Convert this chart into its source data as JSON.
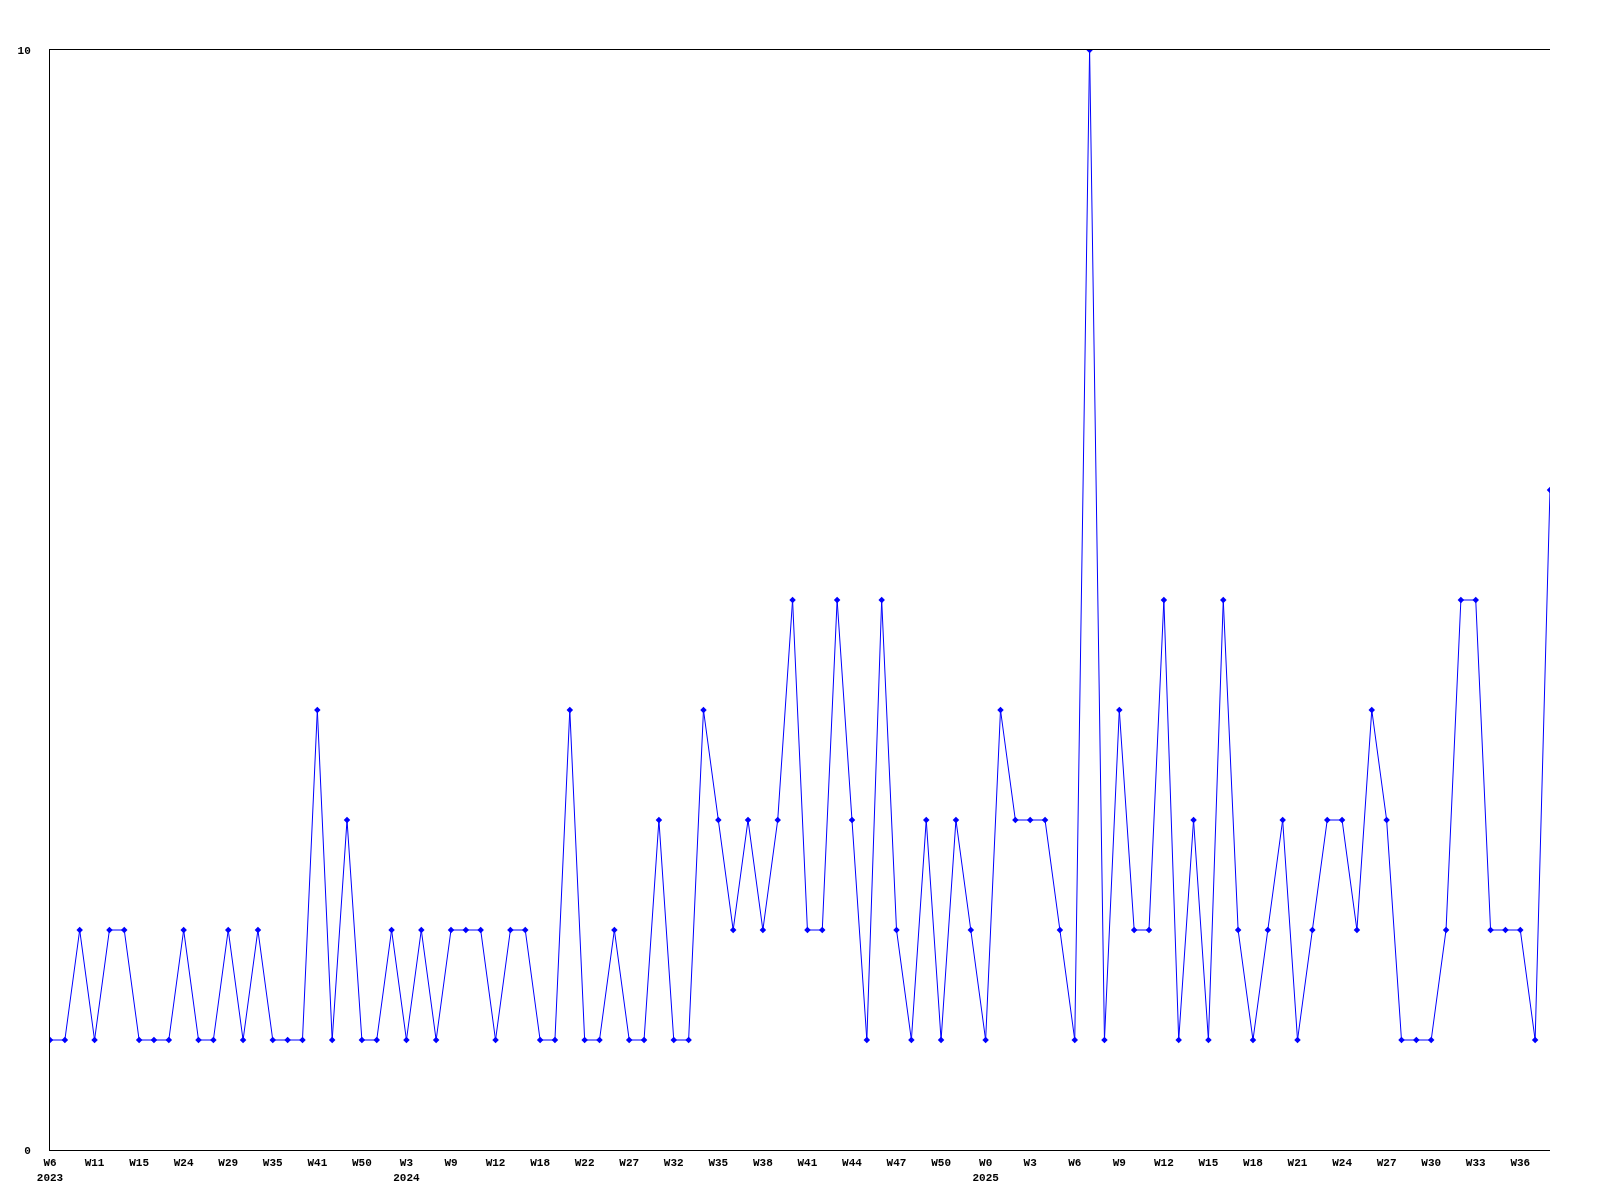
{
  "chart_data": {
    "type": "line",
    "categories": [
      "W6\n2023",
      null,
      null,
      "W11",
      null,
      null,
      "W15",
      null,
      null,
      "W24",
      null,
      null,
      "W29",
      null,
      null,
      "W35",
      null,
      null,
      "W41",
      null,
      null,
      "W50",
      null,
      null,
      "W3\n2024",
      null,
      null,
      "W9",
      null,
      null,
      "W12",
      null,
      null,
      "W18",
      null,
      null,
      "W22",
      null,
      null,
      "W27",
      null,
      null,
      "W32",
      null,
      null,
      "W35",
      null,
      null,
      "W38",
      null,
      null,
      "W41",
      null,
      null,
      "W44",
      null,
      null,
      "W47",
      null,
      null,
      "W50",
      null,
      null,
      "W0\n2025",
      null,
      null,
      "W3",
      null,
      null,
      "W6",
      null,
      null,
      "W9",
      null,
      null,
      "W12",
      null,
      null,
      "W15",
      null,
      null,
      "W18",
      null,
      null,
      "W21",
      null,
      null,
      "W24",
      null,
      null,
      "W27",
      null,
      null,
      "W30",
      null,
      null,
      "W33",
      null,
      null,
      "W36",
      null,
      null
    ],
    "series": [
      {
        "color": "#0000ff",
        "values": [
          1,
          1,
          2,
          1,
          2,
          2,
          1,
          1,
          1,
          2,
          1,
          1,
          2,
          1,
          2,
          1,
          1,
          1,
          4,
          1,
          3,
          1,
          1,
          2,
          1,
          2,
          1,
          2,
          2,
          2,
          1,
          2,
          2,
          1,
          1,
          4,
          1,
          1,
          2,
          1,
          1,
          3,
          1,
          1,
          4,
          3,
          2,
          3,
          2,
          3,
          5,
          2,
          2,
          5,
          3,
          1,
          5,
          2,
          1,
          3,
          1,
          3,
          2,
          1,
          4,
          3,
          3,
          3,
          2,
          1,
          10,
          1,
          4,
          2,
          2,
          5,
          1,
          3,
          1,
          5,
          2,
          1,
          2,
          3,
          1,
          2,
          3,
          3,
          2,
          4,
          3,
          1,
          1,
          1,
          2,
          5,
          5,
          2,
          2,
          2,
          1,
          6
        ]
      }
    ],
    "ylim": [
      0,
      10
    ],
    "yticks": [
      0,
      10
    ],
    "marker": "diamond",
    "line_style": "solid"
  }
}
